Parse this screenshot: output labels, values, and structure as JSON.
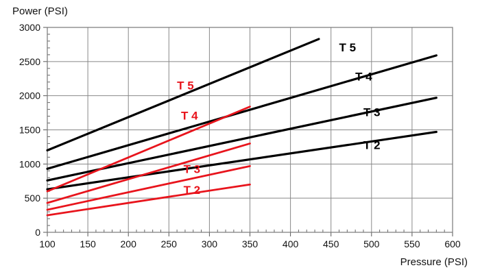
{
  "chart_data": {
    "type": "line",
    "title": "",
    "xlabel": "Pressure (PSI)",
    "ylabel": "Power (PSI)",
    "xlim": [
      100,
      600
    ],
    "ylim": [
      0,
      3000
    ],
    "x_ticks": [
      "100",
      "150",
      "200",
      "250",
      "300",
      "350",
      "400",
      "450",
      "500",
      "550",
      "600"
    ],
    "y_ticks": [
      "0",
      "500",
      "1000",
      "1500",
      "2000",
      "2500",
      "3000"
    ],
    "grid": true,
    "series": [
      {
        "name": "T 5",
        "color": "#000000",
        "x": [
          100,
          435
        ],
        "y": [
          1200,
          2830
        ],
        "label_at": [
          460,
          2650
        ]
      },
      {
        "name": "T 4",
        "color": "#000000",
        "x": [
          100,
          580
        ],
        "y": [
          930,
          2590
        ],
        "label_at": [
          480,
          2220
        ]
      },
      {
        "name": "T 3",
        "color": "#000000",
        "x": [
          100,
          580
        ],
        "y": [
          760,
          1970
        ],
        "label_at": [
          490,
          1700
        ]
      },
      {
        "name": "T 2",
        "color": "#000000",
        "x": [
          100,
          580
        ],
        "y": [
          630,
          1470
        ],
        "label_at": [
          490,
          1220
        ]
      },
      {
        "name": "T 5",
        "color": "#e8141c",
        "x": [
          100,
          350
        ],
        "y": [
          600,
          1840
        ],
        "label_at": [
          260,
          2090
        ]
      },
      {
        "name": "T 4",
        "color": "#e8141c",
        "x": [
          100,
          350
        ],
        "y": [
          430,
          1300
        ],
        "label_at": [
          265,
          1650
        ]
      },
      {
        "name": "T 3",
        "color": "#e8141c",
        "x": [
          100,
          350
        ],
        "y": [
          330,
          970
        ],
        "label_at": [
          268,
          870
        ]
      },
      {
        "name": "T 2",
        "color": "#e8141c",
        "x": [
          100,
          350
        ],
        "y": [
          250,
          700
        ],
        "label_at": [
          268,
          560
        ]
      }
    ]
  }
}
